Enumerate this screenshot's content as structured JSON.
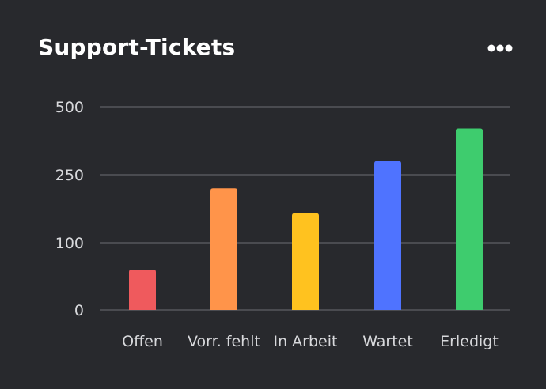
{
  "card": {
    "title": "Support-Tickets",
    "menu_icon": "more-horizontal-icon"
  },
  "chart_data": {
    "type": "bar",
    "title": "Support-Tickets",
    "xlabel": "",
    "ylabel": "",
    "categories": [
      "Offen",
      "Vorr. fehlt",
      "In Arbeit",
      "Wartet",
      "Erledigt"
    ],
    "values": [
      60,
      220,
      165,
      300,
      420
    ],
    "bar_colors": [
      "#ef5a5d",
      "#ff944a",
      "#ffc21f",
      "#4f73ff",
      "#3ecc6e"
    ],
    "y_ticks": [
      0,
      100,
      250,
      500
    ],
    "y_tick_labels": [
      "0",
      "100",
      "250",
      "500"
    ],
    "scale": "stepped",
    "grid": true,
    "legend": "none",
    "colors": {
      "background": "#28292d",
      "gridline": "#55575c",
      "text": "#d8d9dc"
    }
  }
}
